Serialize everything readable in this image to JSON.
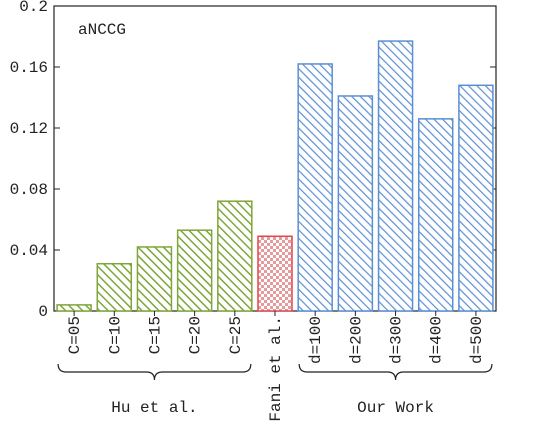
{
  "colors": {
    "hu": "#7ea63a",
    "fani": "#e0474c",
    "ours": "#5b8fd4",
    "axis": "#222222"
  },
  "chart_data": {
    "type": "bar",
    "title": "aNCCG",
    "ylim": [
      0,
      0.2
    ],
    "yticks": [
      "0",
      "0.04",
      "0.08",
      "0.12",
      "0.16",
      "0.2"
    ],
    "ytick_values": [
      0,
      0.04,
      0.08,
      0.12,
      0.16,
      0.2
    ],
    "categories": [
      "C=05",
      "C=10",
      "C=15",
      "C=20",
      "C=25",
      "Fani et al.",
      "d=100",
      "d=200",
      "d=300",
      "d=400",
      "d=500"
    ],
    "values": [
      0.004,
      0.031,
      0.042,
      0.053,
      0.072,
      0.049,
      0.162,
      0.141,
      0.177,
      0.126,
      0.148
    ],
    "series_style": [
      "hu",
      "hu",
      "hu",
      "hu",
      "hu",
      "fani",
      "ours",
      "ours",
      "ours",
      "ours",
      "ours"
    ],
    "groups": [
      {
        "label": "Hu et al.",
        "start": 0,
        "end": 4
      },
      {
        "label": "Our Work",
        "start": 6,
        "end": 10
      }
    ],
    "grid": false
  }
}
